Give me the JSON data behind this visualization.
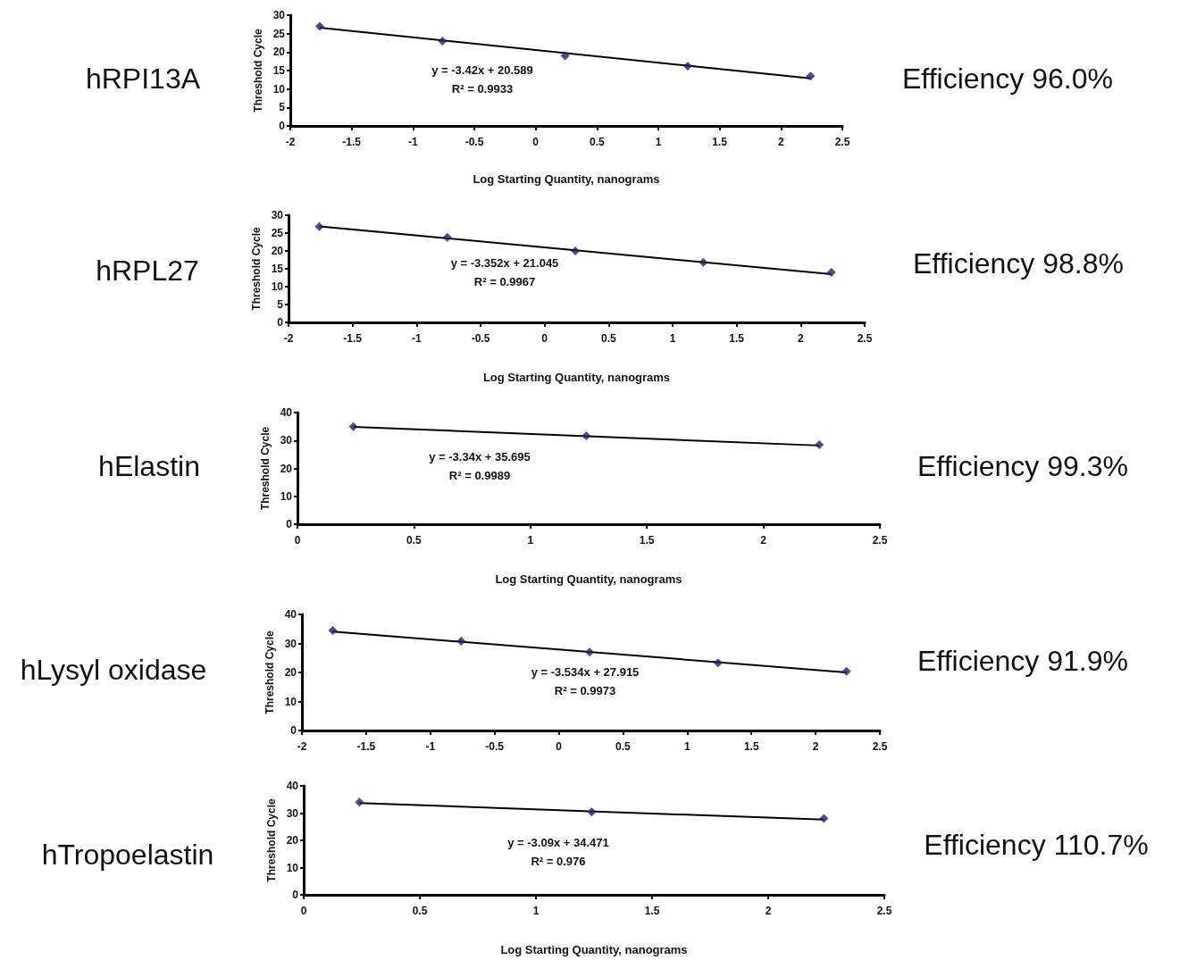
{
  "chart_data": [
    {
      "type": "scatter",
      "title": "hRPI13A",
      "xlabel": "Log Starting Quantity, nanograms",
      "ylabel": "Threshold Cycle",
      "annotations": [
        "y = -3.42x + 20.589\nR² = 0.9933",
        "Efficiency 96.0%"
      ],
      "xlim": [
        -2,
        2.5
      ],
      "xticks": [
        -2,
        -1.5,
        -1,
        -0.5,
        0,
        0.5,
        1,
        1.5,
        2,
        2.5
      ],
      "ylim": [
        0,
        30
      ],
      "yticks": [
        0,
        5,
        10,
        15,
        20,
        25,
        30
      ],
      "marker": "diamond",
      "series": [
        {
          "type": "scatter",
          "color": "#1f1f6b",
          "x": [
            -1.76,
            -0.76,
            0.24,
            1.24,
            2.24
          ],
          "values": [
            27,
            23,
            19,
            16.2,
            13.5
          ]
        },
        {
          "type": "line",
          "color": "#000000",
          "marker": "none",
          "x": [
            -1.76,
            2.24
          ],
          "values": [
            26.6,
            12.9
          ]
        }
      ]
    },
    {
      "type": "scatter",
      "title": "hRPL27",
      "xlabel": "Log Starting Quantity, nanograms",
      "ylabel": "Threshold Cycle",
      "annotations": [
        "y = -3.352x + 21.045\nR² = 0.9967",
        "Efficiency 98.8%"
      ],
      "xlim": [
        -2,
        2.5
      ],
      "xticks": [
        -2,
        -1.5,
        -1,
        -0.5,
        0,
        0.5,
        1,
        1.5,
        2,
        2.5
      ],
      "ylim": [
        0,
        30
      ],
      "yticks": [
        0,
        5,
        10,
        15,
        20,
        25,
        30
      ],
      "marker": "diamond",
      "series": [
        {
          "type": "scatter",
          "color": "#1f1f6b",
          "x": [
            -1.76,
            -0.76,
            0.24,
            1.24,
            2.24
          ],
          "values": [
            26.8,
            23.8,
            20,
            16.8,
            14
          ]
        },
        {
          "type": "line",
          "color": "#000000",
          "marker": "none",
          "x": [
            -1.76,
            2.24
          ],
          "values": [
            26.9,
            13.5
          ]
        }
      ]
    },
    {
      "type": "scatter",
      "title": "hElastin",
      "xlabel": "Log Starting Quantity, nanograms",
      "ylabel": "Threshold Cycle",
      "annotations": [
        "y = -3.34x + 35.695\nR² = 0.9989",
        "Efficiency 99.3%"
      ],
      "xlim": [
        0,
        2.5
      ],
      "xticks": [
        0,
        0.5,
        1,
        1.5,
        2,
        2.5
      ],
      "ylim": [
        0,
        40
      ],
      "yticks": [
        0,
        10,
        20,
        30,
        40
      ],
      "marker": "diamond",
      "series": [
        {
          "type": "scatter",
          "color": "#1f1f6b",
          "x": [
            0.24,
            1.24,
            2.24
          ],
          "values": [
            35,
            31.7,
            28.5
          ]
        },
        {
          "type": "line",
          "color": "#000000",
          "marker": "none",
          "x": [
            0.24,
            2.24
          ],
          "values": [
            34.9,
            28.2
          ]
        }
      ]
    },
    {
      "type": "scatter",
      "title": "hLysyl oxidase",
      "ylabel": "Threshold Cycle",
      "annotations": [
        "y = -3.534x + 27.915\nR² = 0.9973",
        "Efficiency 91.9%"
      ],
      "xlim": [
        -2,
        2.5
      ],
      "xticks": [
        -2,
        -1.5,
        -1,
        -0.5,
        0,
        0.5,
        1,
        1.5,
        2,
        2.5
      ],
      "ylim": [
        0,
        40
      ],
      "yticks": [
        0,
        10,
        20,
        30,
        40
      ],
      "marker": "diamond",
      "series": [
        {
          "type": "scatter",
          "color": "#1f1f6b",
          "x": [
            -1.76,
            -0.76,
            0.24,
            1.24,
            2.24
          ],
          "values": [
            34.5,
            30.8,
            27,
            23.3,
            20.4
          ]
        },
        {
          "type": "line",
          "color": "#000000",
          "marker": "none",
          "x": [
            -1.76,
            2.24
          ],
          "values": [
            34.1,
            20
          ]
        }
      ]
    },
    {
      "type": "scatter",
      "title": "hTropoelastin",
      "xlabel": "Log Starting Quantity, nanograms",
      "ylabel": "Threshold Cycle",
      "annotations": [
        "y = -3.09x + 34.471\nR² = 0.976",
        "Efficiency 110.7%"
      ],
      "xlim": [
        0,
        2.5
      ],
      "xticks": [
        0,
        0.5,
        1,
        1.5,
        2,
        2.5
      ],
      "ylim": [
        0,
        40
      ],
      "yticks": [
        0,
        10,
        20,
        30,
        40
      ],
      "marker": "diamond",
      "series": [
        {
          "type": "scatter",
          "color": "#1f1f6b",
          "x": [
            0.24,
            1.24,
            2.24
          ],
          "values": [
            34,
            30.4,
            28
          ]
        },
        {
          "type": "line",
          "color": "#000000",
          "marker": "none",
          "x": [
            0.24,
            2.24
          ],
          "values": [
            33.7,
            27.6
          ]
        }
      ]
    }
  ]
}
